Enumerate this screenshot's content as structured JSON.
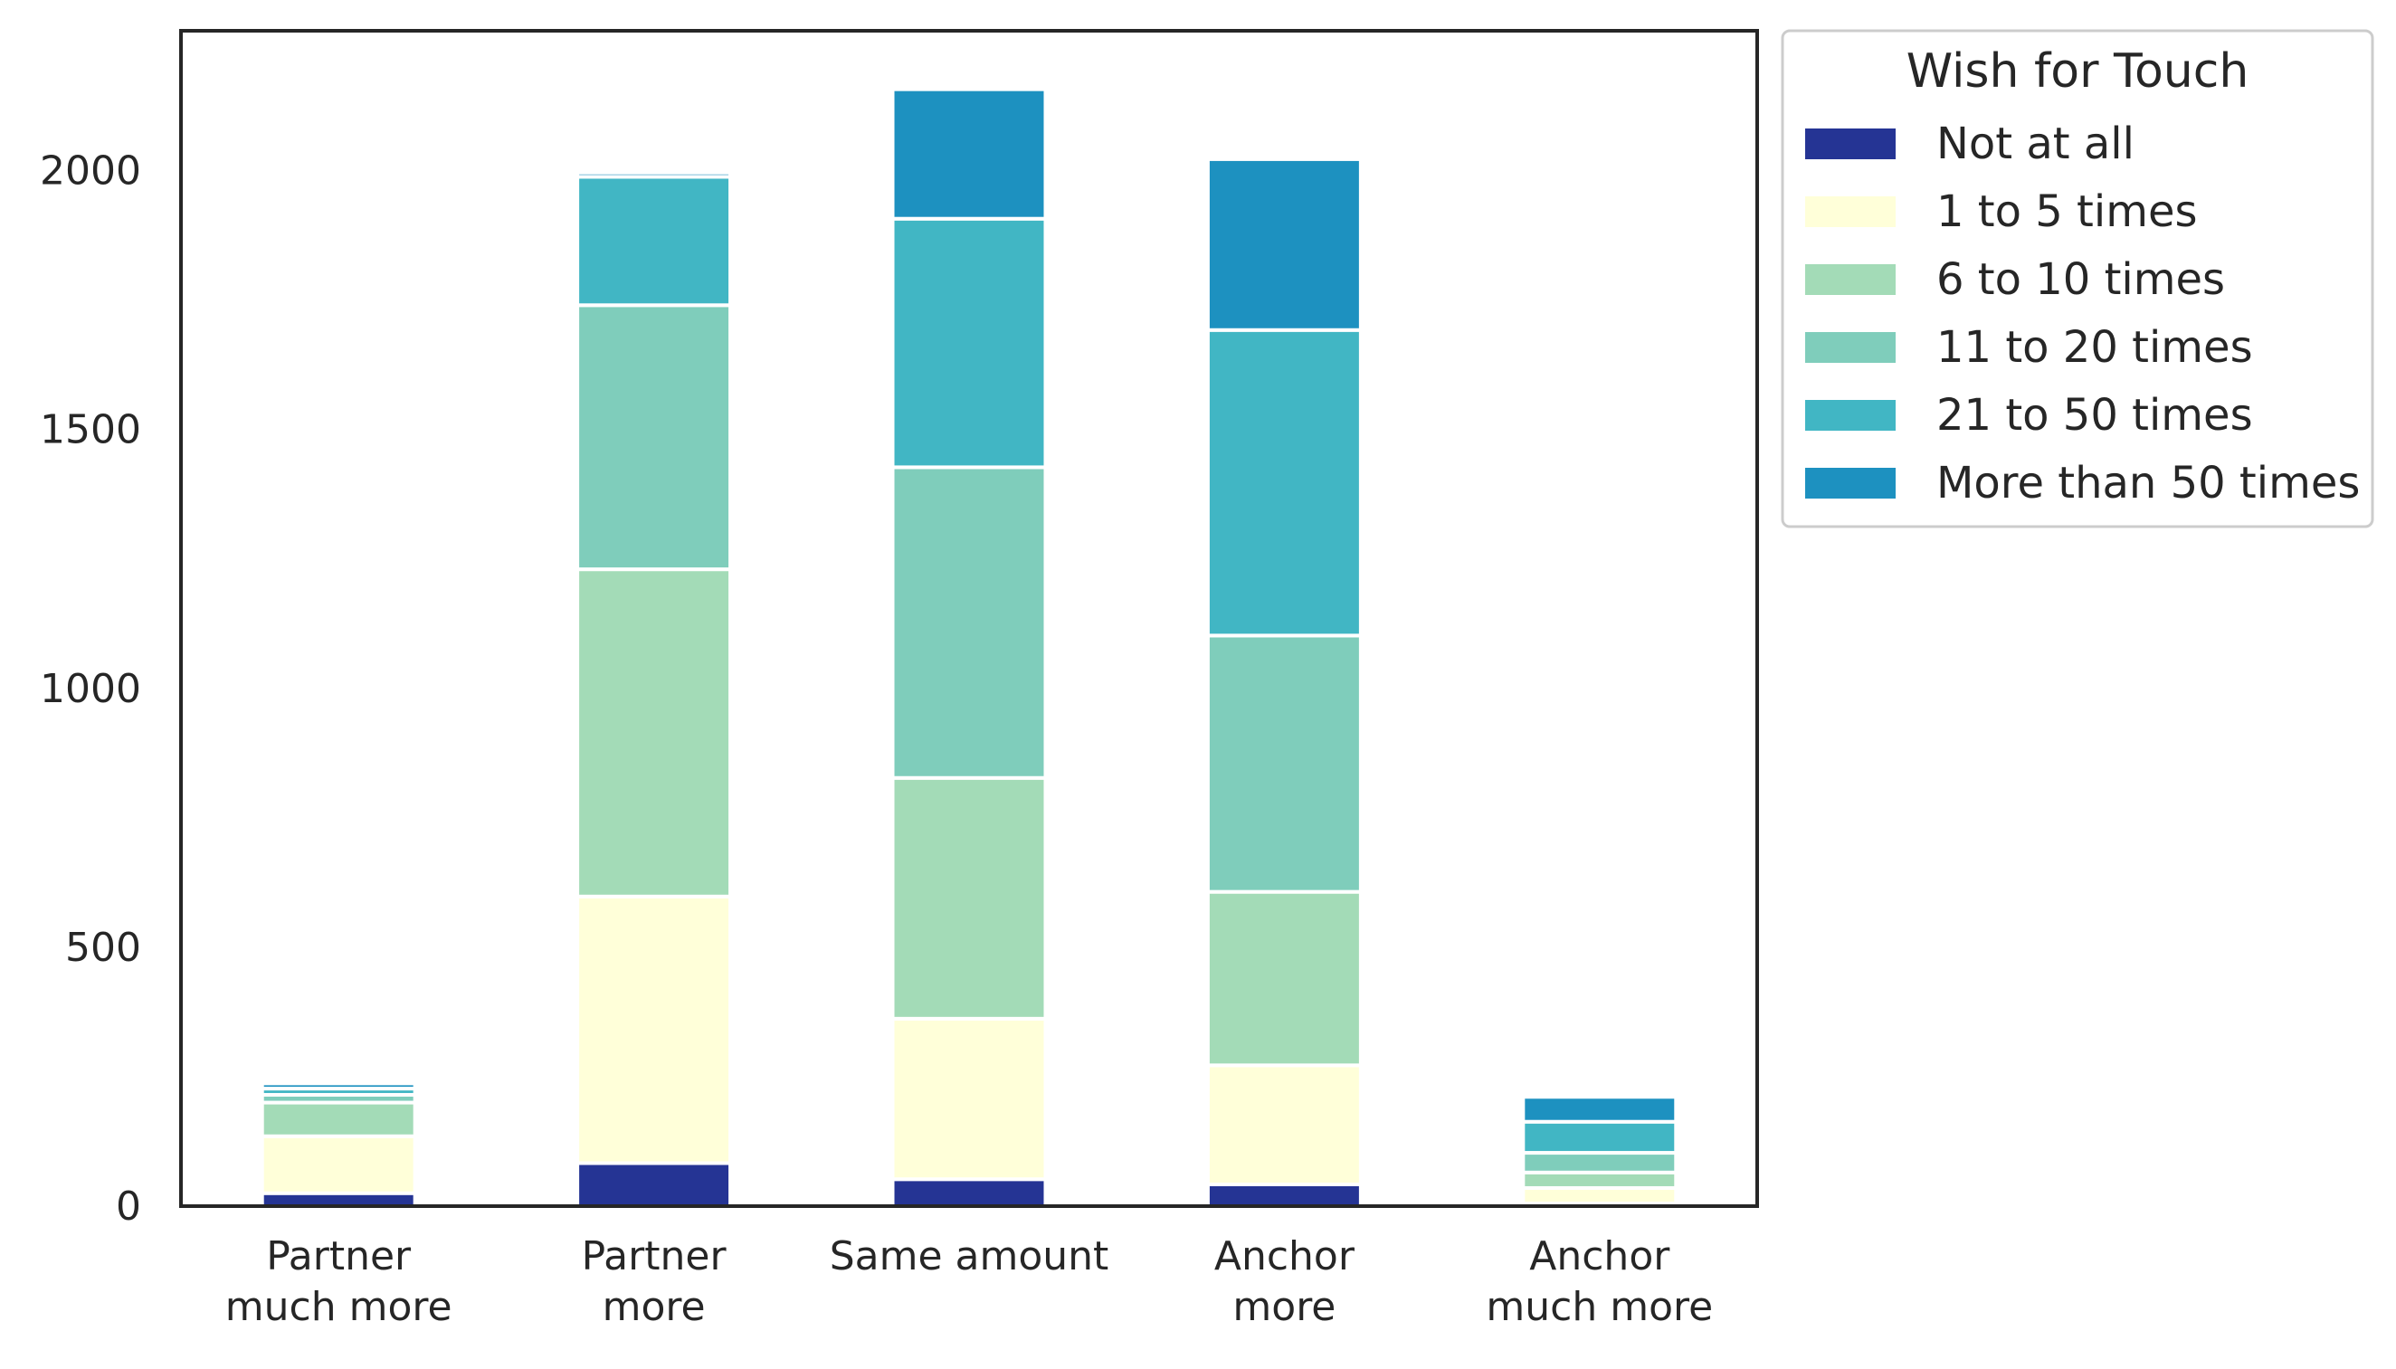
{
  "chart_data": {
    "type": "bar",
    "stacked": true,
    "categories": [
      [
        "Partner",
        "much more"
      ],
      [
        "Partner",
        "more"
      ],
      [
        "Same amount"
      ],
      [
        "Anchor",
        "more"
      ],
      [
        "Anchor",
        "much more"
      ]
    ],
    "ylim": [
      0,
      2270
    ],
    "yticks": [
      "0",
      "500",
      "1000",
      "1500",
      "2000"
    ],
    "ytick_values": [
      0,
      500,
      1000,
      1500,
      2000
    ],
    "grid": false,
    "legend": {
      "title": "Wish for Touch",
      "placement": "outside-top-right"
    },
    "series": [
      {
        "name": "Not at all",
        "color": "#253494",
        "values": [
          25,
          83,
          52,
          42,
          5
        ]
      },
      {
        "name": "1 to 5 times",
        "color": "#ffffd9",
        "values": [
          110,
          515,
          310,
          230,
          30
        ]
      },
      {
        "name": "6 to 10 times",
        "color": "#a3dbb7",
        "values": [
          65,
          632,
          465,
          335,
          30
        ]
      },
      {
        "name": "11 to 20 times",
        "color": "#7fcdbb",
        "values": [
          15,
          510,
          600,
          495,
          38
        ]
      },
      {
        "name": "21 to 50 times",
        "color": "#41b6c4",
        "values": [
          12,
          248,
          480,
          590,
          60
        ]
      },
      {
        "name": "More than 50 times",
        "color": "#1d91c0",
        "values": [
          10,
          8,
          250,
          330,
          48
        ]
      }
    ]
  }
}
